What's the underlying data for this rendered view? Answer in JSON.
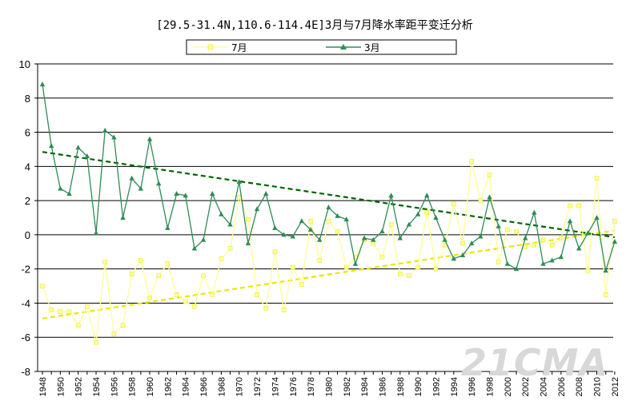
{
  "chart_data": {
    "type": "line",
    "title": "[29.5-31.4N,110.6-114.4E]3月与7月降水率距平变迁分析",
    "xlabel": "",
    "ylabel": "",
    "ylim": [
      -8,
      10
    ],
    "yticks": [
      10,
      8,
      6,
      4,
      2,
      0,
      -2,
      -4,
      -6,
      -8
    ],
    "x": [
      1948,
      1949,
      1950,
      1951,
      1952,
      1953,
      1954,
      1955,
      1956,
      1957,
      1958,
      1959,
      1960,
      1961,
      1962,
      1963,
      1964,
      1965,
      1966,
      1967,
      1968,
      1969,
      1970,
      1971,
      1972,
      1973,
      1974,
      1975,
      1976,
      1977,
      1978,
      1979,
      1980,
      1981,
      1982,
      1983,
      1984,
      1985,
      1986,
      1987,
      1988,
      1989,
      1990,
      1991,
      1992,
      1993,
      1994,
      1995,
      1996,
      1997,
      1998,
      1999,
      2000,
      2001,
      2002,
      2003,
      2004,
      2005,
      2006,
      2007,
      2008,
      2009,
      2010,
      2011,
      2012
    ],
    "xtick_labels": [
      "1948",
      "1950",
      "1952",
      "1954",
      "1956",
      "1958",
      "1960",
      "1962",
      "1964",
      "1966",
      "1968",
      "1970",
      "1972",
      "1974",
      "1976",
      "1978",
      "1980",
      "1982",
      "1984",
      "1986",
      "1988",
      "1990",
      "1992",
      "1994",
      "1996",
      "1998",
      "2000",
      "2002",
      "2004",
      "2006",
      "2008",
      "2010",
      "2012"
    ],
    "series": [
      {
        "name": "7月",
        "color": "#ffff99",
        "marker": "square",
        "values": [
          -3.0,
          -4.4,
          -4.5,
          -4.5,
          -5.3,
          -4.2,
          -6.3,
          -1.6,
          -5.8,
          -5.3,
          -2.3,
          -1.5,
          -3.7,
          -2.4,
          -1.7,
          -3.5,
          -3.9,
          -4.2,
          -2.4,
          -3.5,
          -1.4,
          -0.8,
          2.2,
          0.9,
          -3.5,
          -4.3,
          -1.0,
          -4.4,
          -1.9,
          -2.9,
          0.8,
          -1.5,
          0.8,
          0.2,
          -1.9,
          -1.3,
          -0.3,
          -0.5,
          -1.3,
          0.6,
          -2.3,
          -2.4,
          -1.9,
          1.3,
          -2.0,
          -0.6,
          1.8,
          -0.5,
          4.3,
          2.0,
          3.5,
          -1.6,
          0.3,
          0.2,
          -0.7,
          -0.6,
          -0.3,
          -0.6,
          -0.2,
          1.7,
          1.7,
          -2.1,
          3.3,
          -3.5,
          0.8
        ]
      },
      {
        "name": "3月",
        "color": "#2e8b57",
        "marker": "triangle",
        "values": [
          8.8,
          5.2,
          2.7,
          2.4,
          5.1,
          4.6,
          0.1,
          6.1,
          5.7,
          1.0,
          3.3,
          2.7,
          5.6,
          3.0,
          0.4,
          2.4,
          2.3,
          -0.8,
          -0.3,
          2.4,
          1.2,
          0.6,
          3.1,
          -0.5,
          1.5,
          2.4,
          0.4,
          0.0,
          -0.1,
          0.8,
          0.3,
          -0.3,
          1.6,
          1.1,
          0.9,
          -1.7,
          -0.2,
          -0.3,
          0.2,
          2.3,
          -0.2,
          0.6,
          1.2,
          2.3,
          1.0,
          -0.3,
          -1.4,
          -1.2,
          -0.5,
          -0.1,
          2.2,
          0.5,
          -1.7,
          -2.0,
          -0.2,
          1.3,
          -1.7,
          -1.5,
          -1.3,
          0.8,
          -0.8,
          0.1,
          1.0,
          -2.1,
          -0.4
        ]
      }
    ],
    "trendlines": [
      {
        "series": "7月",
        "color": "#e8e800",
        "start": {
          "x": 1948,
          "y": -4.9
        },
        "end": {
          "x": 2012,
          "y": 0.25
        }
      },
      {
        "series": "3月",
        "color": "#006400",
        "start": {
          "x": 1948,
          "y": 4.85
        },
        "end": {
          "x": 2012,
          "y": -0.15
        }
      }
    ],
    "grid": true,
    "legend": {
      "placement": "top-center",
      "entries": [
        "7月",
        "3月"
      ]
    }
  },
  "watermark": "21CMA"
}
